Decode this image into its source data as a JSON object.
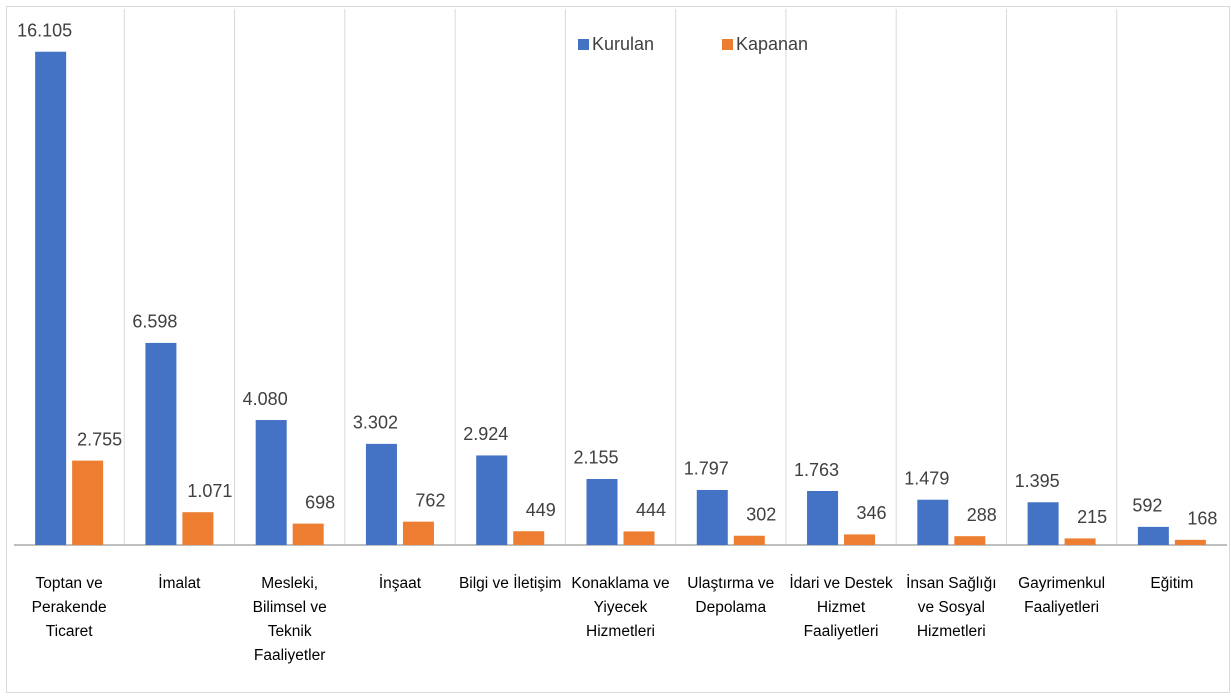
{
  "chart_data": {
    "type": "bar",
    "categories": [
      "Toptan ve Perakende Ticaret",
      "İmalat",
      "Mesleki, Bilimsel ve Teknik Faaliyetler",
      "İnşaat",
      "Bilgi ve İletişim",
      "Konaklama ve Yiyecek Hizmetleri",
      "Ulaştırma ve Depolama",
      "İdari ve Destek Hizmet Faaliyetleri",
      "İnsan Sağlığı ve Sosyal Hizmetleri",
      "Gayrimenkul Faaliyetleri",
      "Eğitim"
    ],
    "series": [
      {
        "name": "Kurulan",
        "color": "#4472c4",
        "values": [
          16105,
          6598,
          4080,
          3302,
          2924,
          2155,
          1797,
          1763,
          1479,
          1395,
          592
        ],
        "value_labels": [
          "16.105",
          "6.598",
          "4.080",
          "3.302",
          "2.924",
          "2.155",
          "1.797",
          "1.763",
          "1.479",
          "1.395",
          "592"
        ]
      },
      {
        "name": "Kapanan",
        "color": "#ed7d31",
        "values": [
          2755,
          1071,
          698,
          762,
          449,
          444,
          302,
          346,
          288,
          215,
          168
        ],
        "value_labels": [
          "2.755",
          "1.071",
          "698",
          "762",
          "449",
          "444",
          "302",
          "346",
          "288",
          "215",
          "168"
        ]
      }
    ],
    "ylim": [
      0,
      17500
    ],
    "legend": "top"
  }
}
